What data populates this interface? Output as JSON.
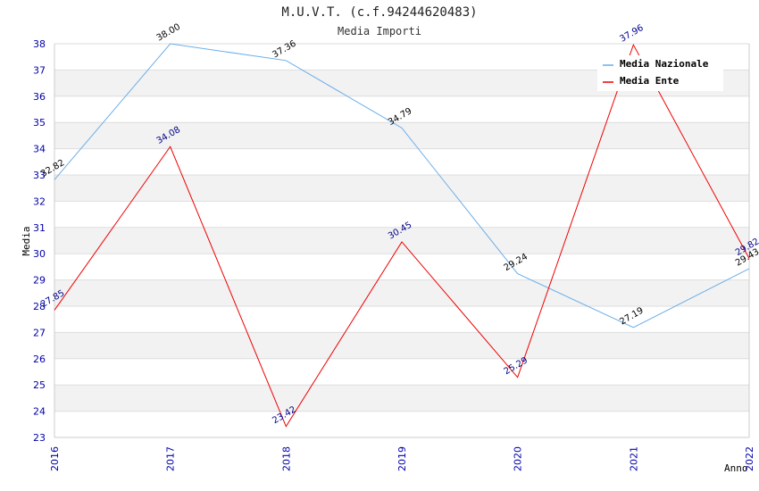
{
  "chart_data": {
    "type": "line",
    "title": "M.U.V.T. (c.f.94244620483)",
    "subtitle": "Media Importi",
    "xlabel": "Anno",
    "ylabel": "Media",
    "categories": [
      "2016",
      "2017",
      "2018",
      "2019",
      "2020",
      "2021",
      "2022"
    ],
    "ylim": [
      23,
      38
    ],
    "yticks": [
      23,
      24,
      25,
      26,
      27,
      28,
      29,
      30,
      31,
      32,
      33,
      34,
      35,
      36,
      37,
      38
    ],
    "grid": "horizontal bands",
    "legend_position": "top-right",
    "series": [
      {
        "name": "Media Nazionale",
        "color": "#6aaee8",
        "label_color": "#000000",
        "values": [
          32.82,
          38.0,
          37.36,
          34.79,
          29.24,
          27.19,
          29.43
        ],
        "labels": [
          "32.82",
          "38.00",
          "37.36",
          "34.79",
          "29.24",
          "27.19",
          "29.43"
        ]
      },
      {
        "name": "Media Ente",
        "color": "#ee0000",
        "label_color": "#000088",
        "values": [
          27.85,
          34.08,
          23.42,
          30.45,
          25.29,
          37.96,
          29.82
        ],
        "labels": [
          "27.85",
          "34.08",
          "23.42",
          "30.45",
          "25.29",
          "37.96",
          "29.82"
        ]
      }
    ]
  }
}
